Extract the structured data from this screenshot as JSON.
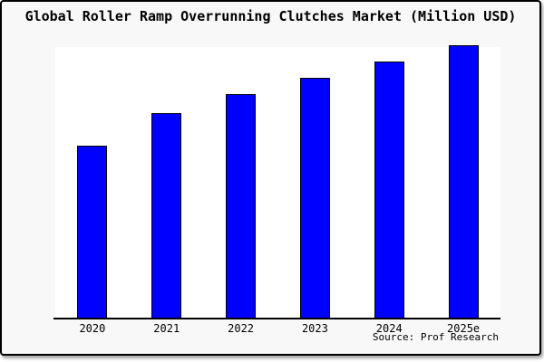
{
  "header": {
    "title": "Global Roller Ramp Overrunning Clutches Market (Million USD)"
  },
  "footer": {
    "source_label": "Source: Prof Research"
  },
  "colors": {
    "bar_fill": "#0000ff",
    "bar_border": "#000000",
    "canvas_background": "#f8f8f8",
    "plot_background": "#ffffff",
    "frame_border": "#000000",
    "text": "#000000"
  },
  "chart_data": {
    "type": "bar",
    "title": "Global Roller Ramp Overrunning Clutches Market (Million USD)",
    "categories": [
      "2020",
      "2021",
      "2022",
      "2023",
      "2024",
      "2025e"
    ],
    "values": [
      63,
      75,
      82,
      88,
      94,
      100
    ],
    "xlabel": "",
    "ylabel": "",
    "ylim": [
      0,
      100
    ],
    "y_axis_visible": false,
    "grid": false,
    "legend": "none",
    "annotation": "Source: Prof Research"
  }
}
